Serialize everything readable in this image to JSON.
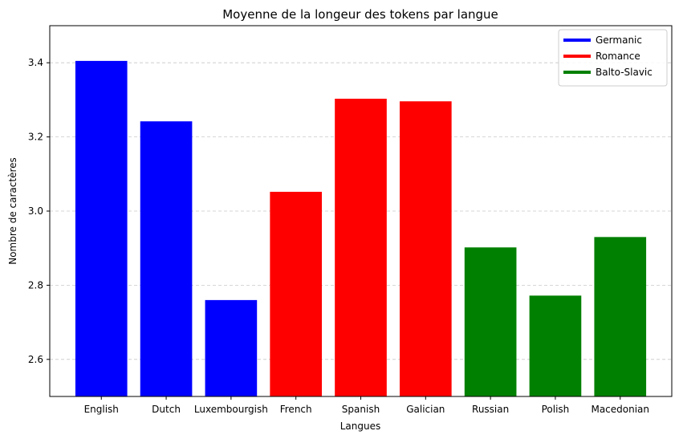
{
  "chart_data": {
    "type": "bar",
    "title": "Moyenne de la longeur des tokens par langue",
    "xlabel": "Langues",
    "ylabel": "Nombre de caractères",
    "ylim": [
      2.5,
      3.5
    ],
    "yticks": [
      2.6,
      2.8,
      3.0,
      3.2,
      3.4
    ],
    "ytick_labels": [
      "2.6",
      "2.8",
      "3.0",
      "3.2",
      "3.4"
    ],
    "grid": {
      "y": true,
      "style": "dashed"
    },
    "legend_position": "top-right",
    "categories": [
      "English",
      "Dutch",
      "Luxembourgish",
      "French",
      "Spanish",
      "Galician",
      "Russian",
      "Polish",
      "Macedonian"
    ],
    "values": [
      3.405,
      3.242,
      2.76,
      3.052,
      3.303,
      3.296,
      2.902,
      2.772,
      2.93
    ],
    "groups": [
      "Germanic",
      "Germanic",
      "Germanic",
      "Romance",
      "Romance",
      "Romance",
      "Balto-Slavic",
      "Balto-Slavic",
      "Balto-Slavic"
    ],
    "legend": [
      {
        "name": "Germanic",
        "color": "#0000ff"
      },
      {
        "name": "Romance",
        "color": "#ff0000"
      },
      {
        "name": "Balto-Slavic",
        "color": "#008000"
      }
    ]
  }
}
